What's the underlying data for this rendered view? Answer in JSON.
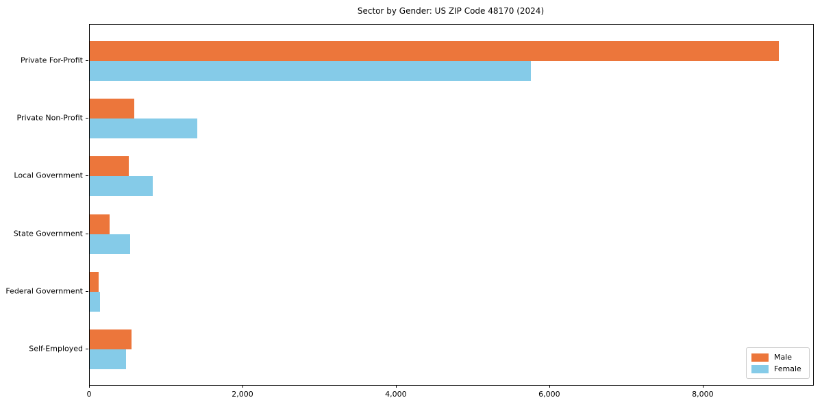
{
  "chart_data": {
    "type": "bar",
    "orientation": "horizontal",
    "title": "Sector by Gender: US ZIP Code 48170 (2024)",
    "categories": [
      "Private For-Profit",
      "Private Non-Profit",
      "Local Government",
      "State Government",
      "Federal Government",
      "Self-Employed"
    ],
    "series": [
      {
        "name": "Male",
        "color": "#EC763B",
        "values": [
          8980,
          580,
          510,
          260,
          120,
          545
        ]
      },
      {
        "name": "Female",
        "color": "#85CBE8",
        "values": [
          5750,
          1400,
          820,
          530,
          130,
          475
        ]
      }
    ],
    "xlabel": "",
    "ylabel": "",
    "xlim": [
      0,
      9430
    ],
    "x_ticks": [
      0,
      2000,
      4000,
      6000,
      8000
    ],
    "x_tick_labels": [
      "0",
      "2,000",
      "4,000",
      "6,000",
      "8,000"
    ],
    "grid": false,
    "legend_position": "lower right"
  },
  "legend": {
    "items": [
      {
        "label": "Male",
        "color": "#EC763B"
      },
      {
        "label": "Female",
        "color": "#85CBE8"
      }
    ]
  },
  "colors": {
    "male": "#EC763B",
    "female": "#85CBE8",
    "axis": "#000000",
    "background": "#FFFFFF"
  }
}
